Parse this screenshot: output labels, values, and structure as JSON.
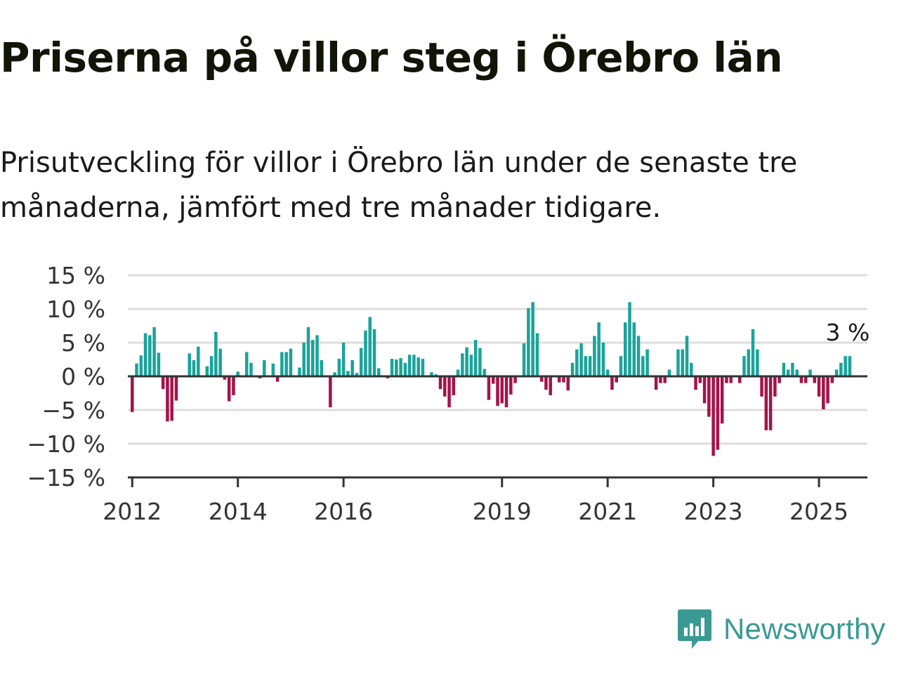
{
  "title": "Priserna på villor steg i Örebro län",
  "subtitle": "Prisutveckling för villor i Örebro län under de senaste tre månaderna, jämfört med tre månader tidigare.",
  "logo": {
    "text": "Newsworthy",
    "icon": "bar-chart-speech-bubble-icon",
    "color": "#3a9a93"
  },
  "colors": {
    "positive": "#1aa39a",
    "negative": "#a3144a",
    "grid": "#dddddd",
    "zero_line": "#333333"
  },
  "chart_data": {
    "type": "bar",
    "x_start": "2011-12",
    "x_end": "2025-12",
    "first_bar_month": "2012-01",
    "ylim": [
      -15,
      15
    ],
    "y_ticks": [
      15,
      10,
      5,
      0,
      -5,
      -10,
      -15
    ],
    "y_tick_labels": [
      "15 %",
      "10 %",
      "5 %",
      "0 %",
      "−5 %",
      "−10 %",
      "−15 %"
    ],
    "x_ticks": [
      "2012-01",
      "2014-01",
      "2016-01",
      "2019-01",
      "2021-01",
      "2023-01",
      "2025-01"
    ],
    "x_tick_labels": [
      "2012",
      "2014",
      "2016",
      "2019",
      "2021",
      "2023",
      "2025"
    ],
    "grid": true,
    "last_value_label": "3 %",
    "values": [
      -5.3,
      1.9,
      3.1,
      6.4,
      6.1,
      7.3,
      3.5,
      -1.9,
      -6.7,
      -6.6,
      -3.6,
      0.0,
      0.0,
      3.4,
      2.4,
      4.4,
      0.0,
      1.5,
      3.0,
      6.6,
      4.1,
      -0.5,
      -3.7,
      -2.8,
      0.7,
      0.0,
      3.6,
      2.0,
      0.0,
      -0.3,
      2.4,
      0.0,
      1.9,
      -0.8,
      3.6,
      3.6,
      4.1,
      0.0,
      1.3,
      5.0,
      7.3,
      5.4,
      6.1,
      2.4,
      0.0,
      -4.6,
      0.6,
      2.6,
      5.0,
      0.8,
      2.4,
      0.5,
      4.2,
      6.8,
      8.8,
      7.0,
      1.2,
      0.0,
      -0.3,
      2.6,
      2.5,
      2.7,
      2.0,
      3.2,
      3.2,
      2.8,
      2.6,
      0.0,
      0.6,
      0.3,
      -1.9,
      -3.0,
      -4.6,
      -2.8,
      1.0,
      3.4,
      4.3,
      3.2,
      5.4,
      4.2,
      1.1,
      -3.5,
      -1.1,
      -4.4,
      -4.0,
      -4.6,
      -2.7,
      -1.0,
      0.0,
      4.9,
      10.1,
      11.0,
      6.4,
      -0.8,
      -2.0,
      -2.8,
      0.0,
      -0.9,
      -0.9,
      -2.1,
      2.0,
      4.0,
      4.9,
      3.0,
      3.0,
      6.0,
      8.0,
      5.0,
      1.0,
      -2.0,
      -0.9,
      3.0,
      8.0,
      11.0,
      8.0,
      6.0,
      3.0,
      4.0,
      0.0,
      -2.0,
      -1.0,
      -1.0,
      1.0,
      0.0,
      4.0,
      4.0,
      6.0,
      2.0,
      -2.0,
      -1.0,
      -4.0,
      -6.0,
      -11.8,
      -10.9,
      -7.0,
      -1.0,
      -1.0,
      0.0,
      -1.0,
      3.0,
      4.0,
      7.0,
      4.0,
      -3.0,
      -8.0,
      -8.0,
      -3.0,
      -1.0,
      2.0,
      1.0,
      2.0,
      1.0,
      -1.0,
      -1.0,
      1.0,
      -1.0,
      -3.0,
      -4.9,
      -4.0,
      -1.0,
      1.0,
      2.0,
      3.0,
      3.0
    ]
  }
}
